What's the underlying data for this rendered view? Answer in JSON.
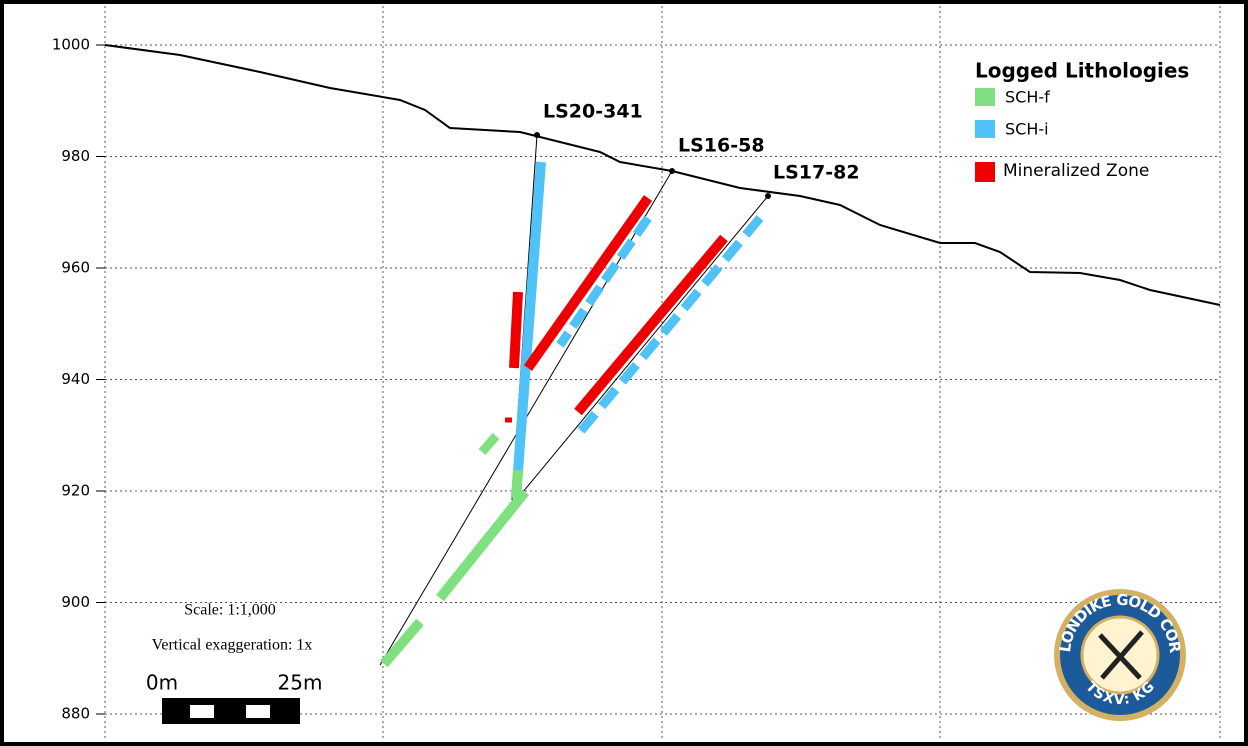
{
  "section": {
    "elevation_ticks": [
      1000,
      980,
      960,
      940,
      920,
      900,
      880
    ],
    "drill_holes": [
      "LS20-341",
      "LS16-58",
      "LS17-82"
    ],
    "legend": {
      "title": "Logged Lithologies",
      "items": [
        "SCH-f",
        "SCH-i",
        "Mineralized Zone"
      ]
    },
    "scale": "Scale: 1:1,000",
    "vertical_exaggeration": "Vertical exaggeration: 1x",
    "scale_bar": [
      "0m",
      "25m"
    ],
    "logo": {
      "name": "KLONDIKE GOLD CORP",
      "ticker": "TSXV: KG"
    }
  }
}
